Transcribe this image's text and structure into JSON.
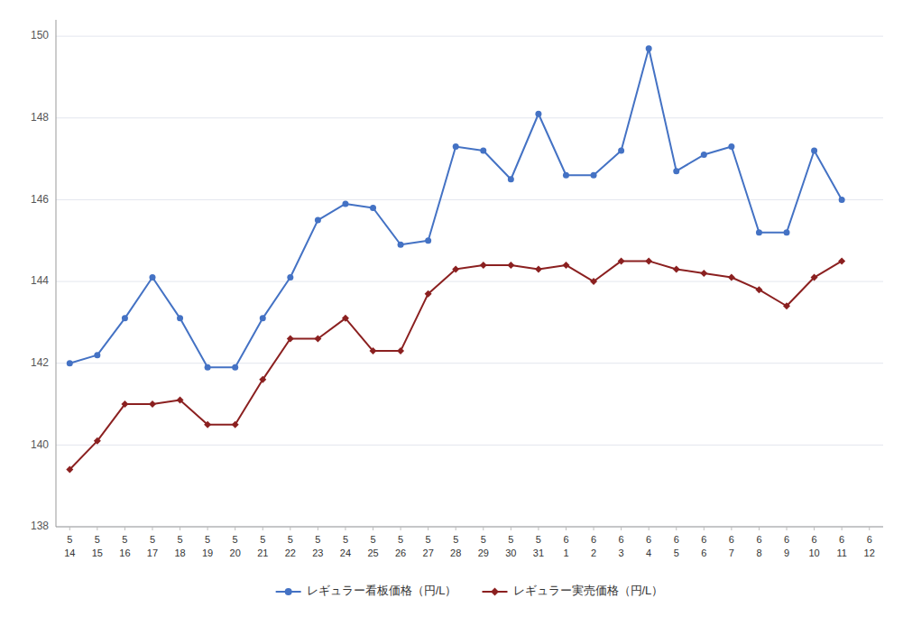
{
  "chart_data": {
    "type": "line",
    "categories": [
      [
        "5",
        "14"
      ],
      [
        "5",
        "15"
      ],
      [
        "5",
        "16"
      ],
      [
        "5",
        "17"
      ],
      [
        "5",
        "18"
      ],
      [
        "5",
        "19"
      ],
      [
        "5",
        "20"
      ],
      [
        "5",
        "21"
      ],
      [
        "5",
        "22"
      ],
      [
        "5",
        "23"
      ],
      [
        "5",
        "24"
      ],
      [
        "5",
        "25"
      ],
      [
        "5",
        "26"
      ],
      [
        "5",
        "27"
      ],
      [
        "5",
        "28"
      ],
      [
        "5",
        "29"
      ],
      [
        "5",
        "30"
      ],
      [
        "5",
        "31"
      ],
      [
        "6",
        "1"
      ],
      [
        "6",
        "2"
      ],
      [
        "6",
        "3"
      ],
      [
        "6",
        "4"
      ],
      [
        "6",
        "5"
      ],
      [
        "6",
        "6"
      ],
      [
        "6",
        "7"
      ],
      [
        "6",
        "8"
      ],
      [
        "6",
        "9"
      ],
      [
        "6",
        "10"
      ],
      [
        "6",
        "11"
      ],
      [
        "6",
        "12"
      ]
    ],
    "series": [
      {
        "name": "レギュラー看板価格（円/L）",
        "color": "#4472C4",
        "marker": "circle",
        "values": [
          142.0,
          142.2,
          143.1,
          144.1,
          143.1,
          141.9,
          141.9,
          143.1,
          144.1,
          145.5,
          145.9,
          145.8,
          144.9,
          145.0,
          147.3,
          147.2,
          146.5,
          148.1,
          146.6,
          146.6,
          147.2,
          149.7,
          146.7,
          147.1,
          147.3,
          145.2,
          145.2,
          147.2,
          146.0,
          null
        ]
      },
      {
        "name": "レギュラー実売価格（円/L）",
        "color": "#8B2020",
        "marker": "diamond",
        "values": [
          139.4,
          140.1,
          141.0,
          141.0,
          141.1,
          140.5,
          140.5,
          141.6,
          142.6,
          142.6,
          143.1,
          142.3,
          142.3,
          143.7,
          144.3,
          144.4,
          144.4,
          144.3,
          144.4,
          144.0,
          144.5,
          144.5,
          144.3,
          144.2,
          144.1,
          143.8,
          143.4,
          144.1,
          144.5,
          null
        ]
      }
    ],
    "ylim": [
      138,
      150.4
    ],
    "yticks": [
      138,
      140,
      142,
      144,
      146,
      148,
      150
    ],
    "grid": true,
    "legend": "bottom"
  }
}
